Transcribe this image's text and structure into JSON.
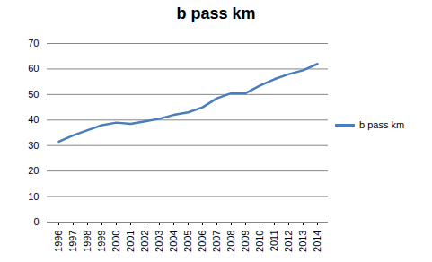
{
  "chart_data": {
    "type": "line",
    "title": "b pass km",
    "categories": [
      "1996",
      "1997",
      "1998",
      "1999",
      "2000",
      "2001",
      "2002",
      "2003",
      "2004",
      "2005",
      "2006",
      "2007",
      "2008",
      "2009",
      "2010",
      "2011",
      "2012",
      "2013",
      "2014"
    ],
    "series": [
      {
        "name": "b pass km",
        "color": "#4a7ebb",
        "values": [
          31.5,
          34,
          36,
          38,
          39,
          38.5,
          39.5,
          40.5,
          42,
          43,
          45,
          48.5,
          50.5,
          50.5,
          53.5,
          56,
          58,
          59.5,
          62
        ]
      }
    ],
    "ylim": [
      0,
      70
    ],
    "yticks": [
      0,
      10,
      20,
      30,
      40,
      50,
      60,
      70
    ],
    "grid": true,
    "legend": "right"
  }
}
